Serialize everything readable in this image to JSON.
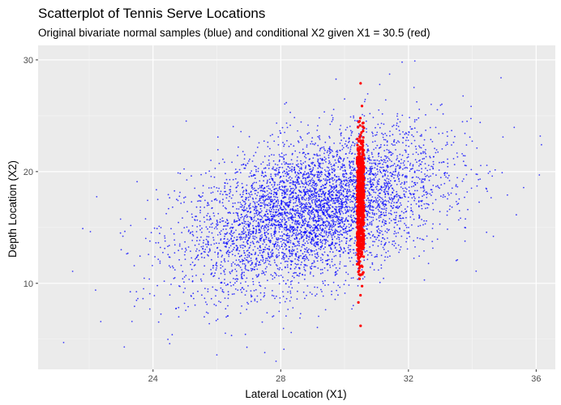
{
  "chart_data": {
    "type": "scatter",
    "title": "Scatterplot of Tennis Serve Locations",
    "subtitle": "Original bivariate normal samples (blue) and conditional X2 given X1 = 30.5 (red)",
    "xlabel": "Lateral Location (X1)",
    "ylabel": "Depth Location (X2)",
    "xlim": [
      20.4,
      36.6
    ],
    "ylim": [
      2.3,
      31.3
    ],
    "x_ticks": [
      24,
      28,
      32,
      36
    ],
    "y_ticks": [
      10,
      20,
      30
    ],
    "grid": true,
    "legend": "none",
    "series": [
      {
        "marker": "small dot",
        "color": "#0000ff",
        "sample_size_approx": 5000,
        "distribution": {
          "mean_x1": 29.0,
          "mean_x2": 16.5,
          "sd_x1": 2.0,
          "sd_x2": 3.5,
          "correlation": 0.45
        },
        "sample_points": [
          {
            "x": 21.2,
            "y": 4.7
          },
          {
            "x": 21.8,
            "y": 14.9
          },
          {
            "x": 22.2,
            "y": 9.4
          },
          {
            "x": 23.1,
            "y": 4.3
          },
          {
            "x": 23.5,
            "y": 19.1
          },
          {
            "x": 24.6,
            "y": 5.4
          },
          {
            "x": 26.0,
            "y": 3.6
          },
          {
            "x": 27.5,
            "y": 3.8
          },
          {
            "x": 28.1,
            "y": 4.1
          },
          {
            "x": 28.3,
            "y": 25.3
          },
          {
            "x": 30.0,
            "y": 26.5
          },
          {
            "x": 31.1,
            "y": 27.8
          },
          {
            "x": 31.8,
            "y": 29.8
          },
          {
            "x": 32.2,
            "y": 29.9
          },
          {
            "x": 34.9,
            "y": 28.4
          },
          {
            "x": 36.1,
            "y": 19.7
          },
          {
            "x": 35.1,
            "y": 17.9
          },
          {
            "x": 32.5,
            "y": 10.3
          }
        ]
      },
      {
        "marker": "filled circle",
        "color": "#ff0000",
        "x_fixed": 30.5,
        "sample_size_approx": 600,
        "distribution": {
          "mean_x2": 17.5,
          "sd_x2": 3.0
        },
        "y_extent": [
          6.2,
          27.9
        ]
      }
    ]
  }
}
